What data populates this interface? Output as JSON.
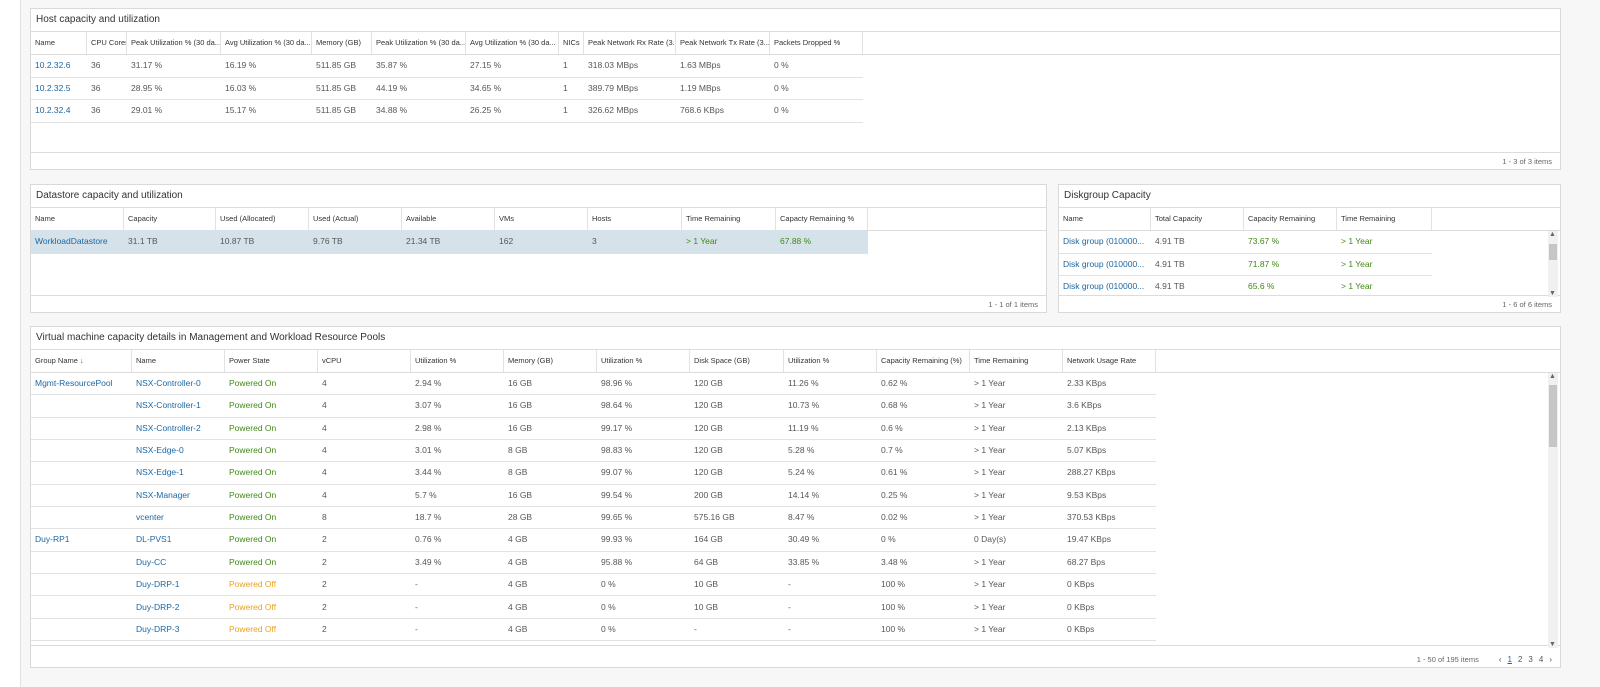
{
  "host": {
    "title": "Host capacity and utilization",
    "columns": [
      "Name",
      "CPU Cores",
      "Peak Utilization % (30 da...",
      "Avg Utilization % (30 da...",
      "Memory (GB)",
      "Peak Utilization % (30 da...",
      "Avg Utilization % (30 da...",
      "NICs",
      "Peak Network Rx Rate (3...",
      "Peak Network Tx Rate (3...",
      "Packets Dropped %"
    ],
    "rows": [
      [
        "10.2.32.6",
        "36",
        "31.17 %",
        "16.19 %",
        "511.85 GB",
        "35.87 %",
        "27.15 %",
        "1",
        "318.03 MBps",
        "1.63 MBps",
        "0 %"
      ],
      [
        "10.2.32.5",
        "36",
        "28.95 %",
        "16.03 %",
        "511.85 GB",
        "44.19 %",
        "34.65 %",
        "1",
        "389.79 MBps",
        "1.19 MBps",
        "0 %"
      ],
      [
        "10.2.32.4",
        "36",
        "29.01 %",
        "15.17 %",
        "511.85 GB",
        "34.88 %",
        "26.25 %",
        "1",
        "326.62 MBps",
        "768.6 KBps",
        "0 %"
      ]
    ],
    "footer": "1 - 3 of 3 items"
  },
  "datastore": {
    "title": "Datastore capacity and utilization",
    "columns": [
      "Name",
      "Capacity",
      "Used (Allocated)",
      "Used (Actual)",
      "Available",
      "VMs",
      "Hosts",
      "Time Remaining",
      "Capacty Remaining %"
    ],
    "rows": [
      [
        "WorkloadDatastore",
        "31.1 TB",
        "10.87 TB",
        "9.76 TB",
        "21.34 TB",
        "162",
        "3",
        "> 1 Year",
        "67.88 %"
      ]
    ],
    "footer": "1 - 1 of 1 items"
  },
  "diskgroup": {
    "title": "Diskgroup Capacity",
    "columns": [
      "Name",
      "Total Capacity",
      "Capacity Remaining",
      "Time Remaining"
    ],
    "rows": [
      [
        "Disk group (010000...",
        "4.91 TB",
        "73.67 %",
        "> 1 Year"
      ],
      [
        "Disk group (010000...",
        "4.91 TB",
        "71.87 %",
        "> 1 Year"
      ],
      [
        "Disk group (010000...",
        "4.91 TB",
        "65.6 %",
        "> 1 Year"
      ]
    ],
    "footer": "1 - 6 of 6 items"
  },
  "vm": {
    "title": "Virtual machine capacity details in Management and Workload Resource Pools",
    "columns": [
      "Group Name",
      "Name",
      "Power State",
      "vCPU",
      "Utilization %",
      "Memory (GB)",
      "Utilization %",
      "Disk Space (GB)",
      "Utilization %",
      "Capacity Remaining (%)",
      "Time Remaining",
      "Network Usage Rate"
    ],
    "state_colors": {
      "Powered On": "#3f8a12",
      "Powered Off": "#e8a21b"
    },
    "rows": [
      [
        "Mgmt-ResourcePool",
        "NSX-Controller-0",
        "Powered On",
        "4",
        "2.94 %",
        "16 GB",
        "98.96 %",
        "120 GB",
        "11.26 %",
        "0.62 %",
        "> 1 Year",
        "2.33 KBps"
      ],
      [
        null,
        "NSX-Controller-1",
        "Powered On",
        "4",
        "3.07 %",
        "16 GB",
        "98.64 %",
        "120 GB",
        "10.73 %",
        "0.68 %",
        "> 1 Year",
        "3.6 KBps"
      ],
      [
        null,
        "NSX-Controller-2",
        "Powered On",
        "4",
        "2.98 %",
        "16 GB",
        "99.17 %",
        "120 GB",
        "11.19 %",
        "0.6 %",
        "> 1 Year",
        "2.13 KBps"
      ],
      [
        null,
        "NSX-Edge-0",
        "Powered On",
        "4",
        "3.01 %",
        "8 GB",
        "98.83 %",
        "120 GB",
        "5.28 %",
        "0.7 %",
        "> 1 Year",
        "5.07 KBps"
      ],
      [
        null,
        "NSX-Edge-1",
        "Powered On",
        "4",
        "3.44 %",
        "8 GB",
        "99.07 %",
        "120 GB",
        "5.24 %",
        "0.61 %",
        "> 1 Year",
        "288.27 KBps"
      ],
      [
        null,
        "NSX-Manager",
        "Powered On",
        "4",
        "5.7 %",
        "16 GB",
        "99.54 %",
        "200 GB",
        "14.14 %",
        "0.25 %",
        "> 1 Year",
        "9.53 KBps"
      ],
      [
        null,
        "vcenter",
        "Powered On",
        "8",
        "18.7 %",
        "28 GB",
        "99.65 %",
        "575.16 GB",
        "8.47 %",
        "0.02 %",
        "> 1 Year",
        "370.53 KBps"
      ],
      [
        "Duy-RP1",
        "DL-PVS1",
        "Powered On",
        "2",
        "0.76 %",
        "4 GB",
        "99.93 %",
        "164 GB",
        "30.49 %",
        "0 %",
        "0 Day(s)",
        "19.47 KBps"
      ],
      [
        null,
        "Duy-CC",
        "Powered On",
        "2",
        "3.49 %",
        "4 GB",
        "95.88 %",
        "64 GB",
        "33.85 %",
        "3.48 %",
        "> 1 Year",
        "68.27 Bps"
      ],
      [
        null,
        "Duy-DRP-1",
        "Powered Off",
        "2",
        "-",
        "4 GB",
        "0 %",
        "10 GB",
        "-",
        "100 %",
        "> 1 Year",
        "0 KBps"
      ],
      [
        null,
        "Duy-DRP-2",
        "Powered Off",
        "2",
        "-",
        "4 GB",
        "0 %",
        "10 GB",
        "-",
        "100 %",
        "> 1 Year",
        "0 KBps"
      ],
      [
        null,
        "Duy-DRP-3",
        "Powered Off",
        "2",
        "-",
        "4 GB",
        "0 %",
        "-",
        "-",
        "100 %",
        "> 1 Year",
        "0 KBps"
      ]
    ],
    "footer": "1 - 50 of 195 items",
    "pages": [
      "1",
      "2",
      "3",
      "4"
    ]
  }
}
